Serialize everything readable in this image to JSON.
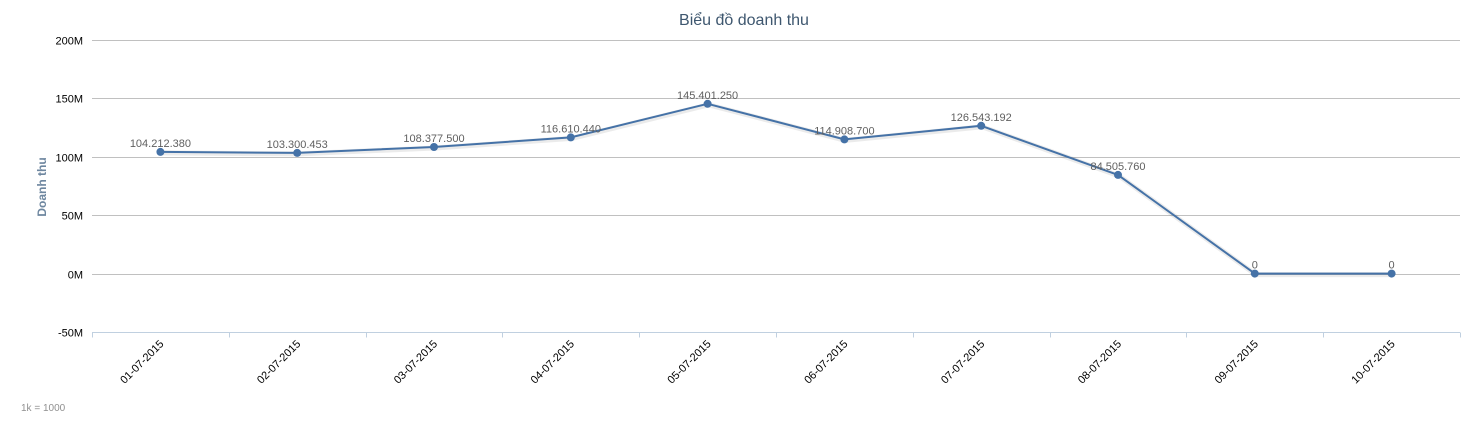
{
  "chart_data": {
    "type": "line",
    "title": "Biểu đồ doanh thu",
    "xlabel": "",
    "ylabel": "Doanh thu",
    "categories": [
      "01-07-2015",
      "02-07-2015",
      "03-07-2015",
      "04-07-2015",
      "05-07-2015",
      "06-07-2015",
      "07-07-2015",
      "08-07-2015",
      "09-07-2015",
      "10-07-2015"
    ],
    "series": [
      {
        "values": [
          104212380,
          103300453,
          108377500,
          116610440,
          145401250,
          114908700,
          126543192,
          84505760,
          0,
          0
        ],
        "labels": [
          "104.212.380",
          "103.300.453",
          "108.377.500",
          "116.610.440",
          "145.401.250",
          "114.908.700",
          "126.543.192",
          "84.505.760",
          "0",
          "0"
        ]
      }
    ],
    "ylim": [
      -50000000,
      200000000
    ],
    "yticks": [
      -50000000,
      0,
      50000000,
      100000000,
      150000000,
      200000000
    ],
    "ytick_labels": [
      "-50M",
      "0M",
      "50M",
      "100M",
      "150M",
      "200M"
    ],
    "grid": true,
    "legend": "none",
    "colors": {
      "line": "#4572a7",
      "grid": "#c0c0c0",
      "axis": "#c0d0e0",
      "title": "#3e576f"
    }
  },
  "footnote": "1k = 1000"
}
